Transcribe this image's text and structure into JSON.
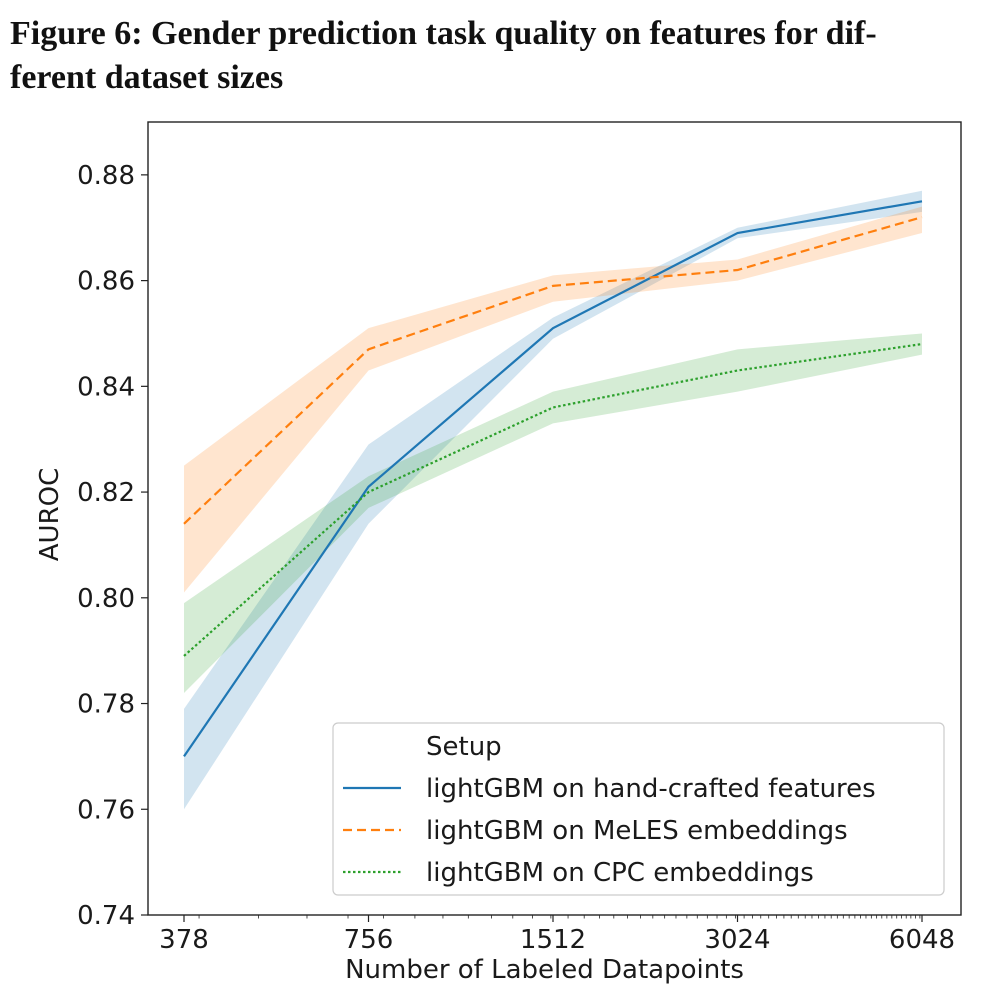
{
  "figure": {
    "caption_line1": "Figure 6: Gender prediction task quality on features for dif-",
    "caption_line2": "ferent dataset sizes"
  },
  "chart_data": {
    "type": "line",
    "xlabel": "Number of Labeled Datapoints",
    "ylabel": "AUROC",
    "x_scale": "log2",
    "x": [
      378,
      756,
      1512,
      3024,
      6048
    ],
    "xticks": [
      "378",
      "756",
      "1512",
      "3024",
      "6048"
    ],
    "ylim": [
      0.74,
      0.89
    ],
    "yticks": [
      "0.74",
      "0.76",
      "0.78",
      "0.80",
      "0.82",
      "0.84",
      "0.86",
      "0.88"
    ],
    "grid": false,
    "legend": {
      "title": "Setup",
      "placement": "lower-right"
    },
    "series": [
      {
        "name": "lightGBM on hand-crafted features",
        "color": "#1f77b4",
        "dash": "solid",
        "values": [
          0.77,
          0.821,
          0.851,
          0.869,
          0.875
        ],
        "lower": [
          0.76,
          0.814,
          0.849,
          0.868,
          0.873
        ],
        "upper": [
          0.779,
          0.829,
          0.853,
          0.87,
          0.877
        ]
      },
      {
        "name": "lightGBM on MeLES embeddings",
        "color": "#ff7f0e",
        "dash": "dashed",
        "values": [
          0.814,
          0.847,
          0.859,
          0.862,
          0.872
        ],
        "lower": [
          0.801,
          0.843,
          0.856,
          0.86,
          0.869
        ],
        "upper": [
          0.825,
          0.851,
          0.861,
          0.864,
          0.874
        ]
      },
      {
        "name": "lightGBM on CPC embeddings",
        "color": "#2ca02c",
        "dash": "dotted",
        "values": [
          0.789,
          0.82,
          0.836,
          0.843,
          0.848
        ],
        "lower": [
          0.782,
          0.817,
          0.833,
          0.839,
          0.846
        ],
        "upper": [
          0.799,
          0.823,
          0.839,
          0.847,
          0.85
        ]
      }
    ]
  }
}
